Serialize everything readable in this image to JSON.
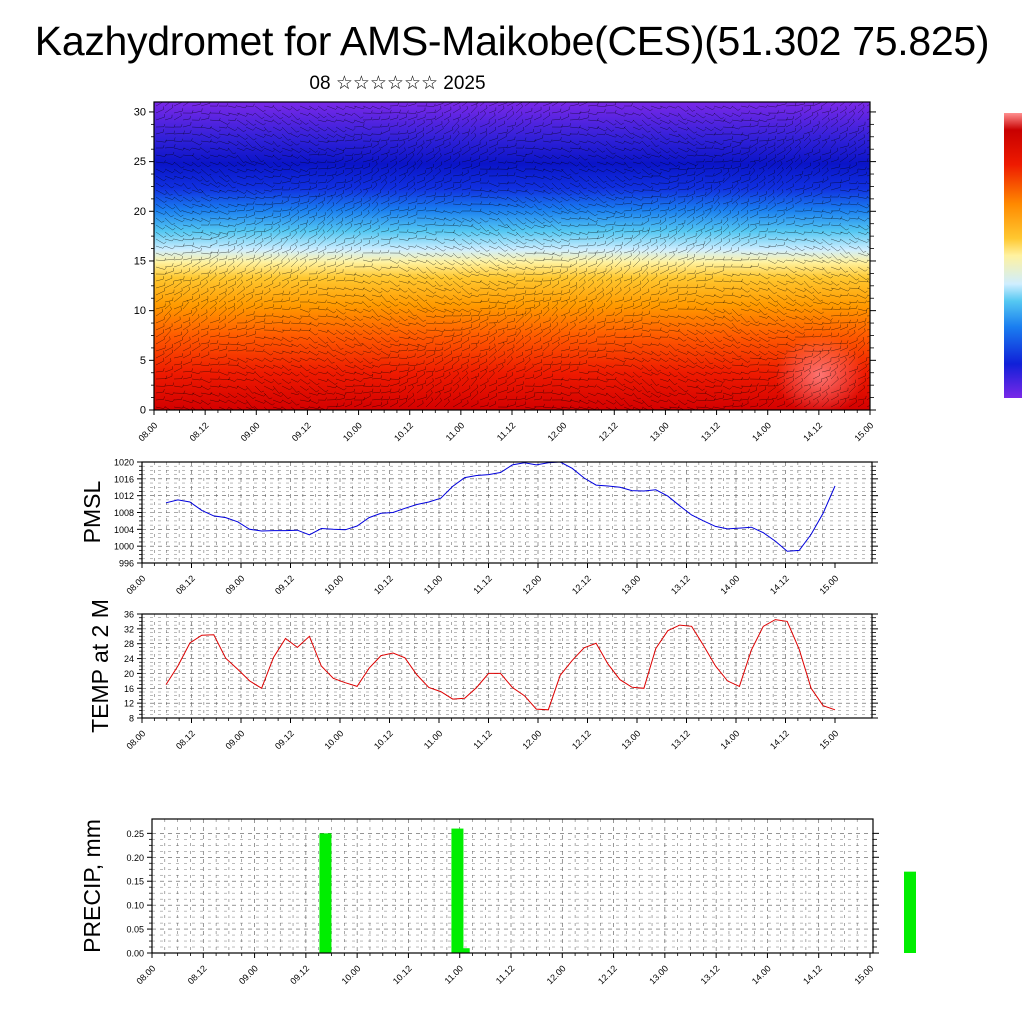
{
  "page": {
    "title": "Kazhydromet for AMS-Maikobe(CES)(51.302 75.825)",
    "subtitle": "08 ☆☆☆☆☆☆ 2025"
  },
  "colors": {
    "pmsl": "#0000dd",
    "temp": "#dd0000",
    "precip": "#00ee00",
    "grid": "#555555"
  },
  "chart_data": [
    {
      "id": "cross-section",
      "type": "heatmap",
      "x_tick_labels": [
        "08.00",
        "08.12",
        "09.00",
        "09.12",
        "10.00",
        "10.12",
        "11.00",
        "11.12",
        "12.00",
        "12.12",
        "13.00",
        "13.12",
        "14.00",
        "14.12",
        "15.00"
      ],
      "y_ticks": [
        0,
        5,
        10,
        15,
        20,
        25,
        30
      ],
      "ylim": [
        0,
        31
      ],
      "colorbar": "top-right",
      "wind_barbs": true,
      "title": "",
      "xlabel": "",
      "ylabel": ""
    },
    {
      "id": "pmsl",
      "type": "line",
      "ylabel": "PMSL",
      "x_tick_labels": [
        "08.00",
        "08.12",
        "09.00",
        "09.12",
        "10.00",
        "10.12",
        "11.00",
        "11.12",
        "12.00",
        "12.12",
        "13.00",
        "13.12",
        "14.00",
        "14.12",
        "15.00"
      ],
      "y_ticks": [
        996,
        1000,
        1004,
        1008,
        1012,
        1016,
        1020
      ],
      "ylim": [
        996,
        1020
      ],
      "grid": true,
      "series": [
        {
          "values": [
            1010.3,
            1011,
            1010.5,
            1008.5,
            1007.2,
            1006.8,
            1005.8,
            1004,
            1003.6,
            1003.7,
            1003.7,
            1003.8,
            1002.7,
            1004.2,
            1004,
            1003.9,
            1004.8,
            1006.8,
            1007.8,
            1008,
            1009,
            1009.9,
            1010.5,
            1011.4,
            1014.2,
            1016.3,
            1016.8,
            1017,
            1017.5,
            1019.3,
            1019.8,
            1019.3,
            1019.8,
            1020,
            1018.5,
            1016.2,
            1014.5,
            1014.3,
            1014,
            1013.2,
            1013.1,
            1013.4,
            1011.9,
            1009.6,
            1007.4,
            1006,
            1004.7,
            1004.1,
            1004.3,
            1004.5,
            1003.2,
            1001.2,
            998.8,
            999,
            1002.8,
            1007.8,
            1014.3
          ]
        }
      ]
    },
    {
      "id": "temp",
      "type": "line",
      "ylabel": "TEMP at 2 M",
      "x_tick_labels": [
        "08.00",
        "08.12",
        "09.00",
        "09.12",
        "10.00",
        "10.12",
        "11.00",
        "11.12",
        "12.00",
        "12.12",
        "13.00",
        "13.12",
        "14.00",
        "14.12",
        "15.00"
      ],
      "y_ticks": [
        8,
        12,
        16,
        20,
        24,
        28,
        32,
        36
      ],
      "ylim": [
        8,
        36
      ],
      "grid": true,
      "series": [
        {
          "values": [
            17,
            22,
            28.2,
            30.3,
            30.4,
            24.1,
            21.1,
            18,
            16,
            24.3,
            29.4,
            27,
            30,
            22,
            18.7,
            17.5,
            16.5,
            21.4,
            24.8,
            25.5,
            24.2,
            19.6,
            16.2,
            15.1,
            13.1,
            13.3,
            16.2,
            20,
            20,
            16.2,
            14,
            10.4,
            10.2,
            19.5,
            23.5,
            26.9,
            28.1,
            22.5,
            18.3,
            16.3,
            16,
            26.7,
            31.5,
            33,
            32.7,
            27.5,
            22,
            18,
            16.5,
            26.3,
            32.7,
            34.5,
            34,
            26.5,
            16,
            11.3,
            10.2
          ]
        }
      ]
    },
    {
      "id": "precip",
      "type": "bar",
      "ylabel": "PRECIP, mm",
      "x_tick_labels": [
        "08.00",
        "08.12",
        "09.00",
        "09.12",
        "10.00",
        "10.12",
        "11.00",
        "11.12",
        "12.00",
        "12.12",
        "13.00",
        "13.12",
        "14.00",
        "14.12",
        "15.00"
      ],
      "y_ticks": [
        "0.00",
        "0.05",
        "0.10",
        "0.15",
        "0.20",
        "0.25"
      ],
      "ylim": [
        0,
        0.28
      ],
      "grid": true,
      "bars": [
        {
          "time": 3.25,
          "value": 0.25
        },
        {
          "time": 5.875,
          "value": 0.26
        },
        {
          "time": 6.0,
          "value": 0.01
        },
        {
          "time": 14.875,
          "value": 0.17
        }
      ]
    }
  ]
}
